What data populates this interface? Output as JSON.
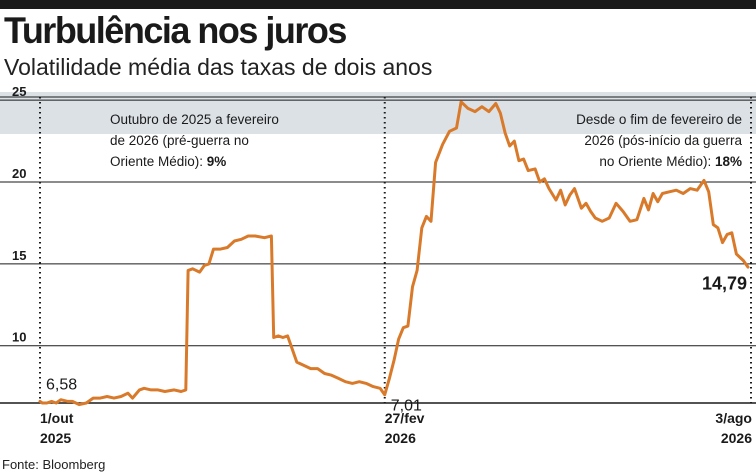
{
  "header": {
    "title": "Turbulência nos juros",
    "subtitle": "Volatilidade média das taxas de dois anos"
  },
  "source": "Fonte: Bloomberg",
  "colors": {
    "line": "#d97a2b",
    "shade": "#dce1e6",
    "grid": "#1a1a1a",
    "text": "#1a1a1a"
  },
  "annotations": {
    "left": {
      "lines": [
        "Outubro de 2025 a fevereiro",
        "de 2026 (pré-guerra no"
      ],
      "last_prefix": "Oriente Médio): ",
      "last_value": "9%"
    },
    "right": {
      "lines": [
        "Desde o fim de fevereiro de",
        "2026 (pós-início da guerra"
      ],
      "last_prefix": "no Oriente Médio): ",
      "last_value": "18%"
    }
  },
  "chart_data": {
    "type": "line",
    "title": "Turbulência nos juros",
    "subtitle": "Volatilidade média das taxas de dois anos",
    "xlabel": "",
    "ylabel": "",
    "ylim": [
      6.5,
      25.5
    ],
    "yticks": [
      10,
      15,
      20,
      25
    ],
    "grid": "horizontal",
    "x_ticks": [
      {
        "label": "1/out",
        "sub": "2025",
        "date": "2025-10-01"
      },
      {
        "label": "27/fev",
        "sub": "2026",
        "date": "2026-02-27"
      },
      {
        "label": "3/ago",
        "sub": "2026",
        "date": "2026-08-03"
      }
    ],
    "data_labels": [
      {
        "text": "6,58",
        "date": "2025-10-01",
        "y": 6.58
      },
      {
        "text": "7,01",
        "date": "2026-02-27",
        "y": 7.01
      },
      {
        "text": "14,79",
        "date": "2026-08-03",
        "y": 14.79
      }
    ],
    "series": [
      {
        "values": [
          [
            "2025-10-01",
            6.6
          ],
          [
            "2025-10-02",
            6.5
          ],
          [
            "2025-10-04",
            6.5
          ],
          [
            "2025-10-06",
            6.6
          ],
          [
            "2025-10-08",
            6.5
          ],
          [
            "2025-10-10",
            6.7
          ],
          [
            "2025-10-13",
            6.6
          ],
          [
            "2025-10-15",
            6.6
          ],
          [
            "2025-10-18",
            6.4
          ],
          [
            "2025-10-21",
            6.5
          ],
          [
            "2025-10-24",
            6.8
          ],
          [
            "2025-10-27",
            6.8
          ],
          [
            "2025-10-30",
            6.9
          ],
          [
            "2025-11-02",
            6.8
          ],
          [
            "2025-11-05",
            6.9
          ],
          [
            "2025-11-08",
            7.1
          ],
          [
            "2025-11-10",
            6.8
          ],
          [
            "2025-11-13",
            7.3
          ],
          [
            "2025-11-15",
            7.4
          ],
          [
            "2025-11-18",
            7.3
          ],
          [
            "2025-11-21",
            7.3
          ],
          [
            "2025-11-24",
            7.2
          ],
          [
            "2025-11-28",
            7.3
          ],
          [
            "2025-12-01",
            7.2
          ],
          [
            "2025-12-03",
            7.3
          ],
          [
            "2025-12-04",
            14.6
          ],
          [
            "2025-12-06",
            14.7
          ],
          [
            "2025-12-09",
            14.5
          ],
          [
            "2025-12-11",
            14.9
          ],
          [
            "2025-12-13",
            15.0
          ],
          [
            "2025-12-15",
            15.9
          ],
          [
            "2025-12-18",
            15.9
          ],
          [
            "2025-12-21",
            16.0
          ],
          [
            "2025-12-24",
            16.4
          ],
          [
            "2025-12-27",
            16.5
          ],
          [
            "2025-12-30",
            16.7
          ],
          [
            "2026-01-02",
            16.7
          ],
          [
            "2026-01-06",
            16.6
          ],
          [
            "2026-01-09",
            16.7
          ],
          [
            "2026-01-10",
            10.5
          ],
          [
            "2026-01-12",
            10.6
          ],
          [
            "2026-01-14",
            10.5
          ],
          [
            "2026-01-16",
            10.6
          ],
          [
            "2026-01-18",
            9.8
          ],
          [
            "2026-01-20",
            9.0
          ],
          [
            "2026-01-23",
            8.8
          ],
          [
            "2026-01-26",
            8.6
          ],
          [
            "2026-01-29",
            8.6
          ],
          [
            "2026-02-01",
            8.3
          ],
          [
            "2026-02-04",
            8.2
          ],
          [
            "2026-02-07",
            8.0
          ],
          [
            "2026-02-10",
            7.8
          ],
          [
            "2026-02-13",
            7.7
          ],
          [
            "2026-02-16",
            7.8
          ],
          [
            "2026-02-19",
            7.7
          ],
          [
            "2026-02-22",
            7.5
          ],
          [
            "2026-02-25",
            7.4
          ],
          [
            "2026-02-27",
            7.0
          ],
          [
            "2026-03-01",
            8.0
          ],
          [
            "2026-03-03",
            9.1
          ],
          [
            "2026-03-05",
            10.4
          ],
          [
            "2026-03-07",
            11.1
          ],
          [
            "2026-03-09",
            11.2
          ],
          [
            "2026-03-11",
            13.6
          ],
          [
            "2026-03-13",
            14.6
          ],
          [
            "2026-03-15",
            17.2
          ],
          [
            "2026-03-17",
            17.9
          ],
          [
            "2026-03-19",
            17.6
          ],
          [
            "2026-03-21",
            21.2
          ],
          [
            "2026-03-24",
            22.3
          ],
          [
            "2026-03-27",
            23.1
          ],
          [
            "2026-03-30",
            23.3
          ],
          [
            "2026-04-01",
            24.9
          ],
          [
            "2026-04-04",
            24.5
          ],
          [
            "2026-04-07",
            24.3
          ],
          [
            "2026-04-10",
            24.6
          ],
          [
            "2026-04-13",
            24.3
          ],
          [
            "2026-04-16",
            24.8
          ],
          [
            "2026-04-18",
            24.2
          ],
          [
            "2026-04-20",
            23.0
          ],
          [
            "2026-04-22",
            22.2
          ],
          [
            "2026-04-24",
            22.5
          ],
          [
            "2026-04-26",
            21.3
          ],
          [
            "2026-04-28",
            21.4
          ],
          [
            "2026-04-30",
            20.7
          ],
          [
            "2026-05-03",
            20.8
          ],
          [
            "2026-05-05",
            20.0
          ],
          [
            "2026-05-07",
            20.2
          ],
          [
            "2026-05-09",
            19.6
          ],
          [
            "2026-05-12",
            18.9
          ],
          [
            "2026-05-14",
            19.5
          ],
          [
            "2026-05-16",
            18.6
          ],
          [
            "2026-05-18",
            19.2
          ],
          [
            "2026-05-20",
            19.6
          ],
          [
            "2026-05-23",
            18.4
          ],
          [
            "2026-05-25",
            18.7
          ],
          [
            "2026-05-27",
            18.2
          ],
          [
            "2026-05-29",
            17.8
          ],
          [
            "2026-06-01",
            17.6
          ],
          [
            "2026-06-04",
            17.8
          ],
          [
            "2026-06-07",
            18.7
          ],
          [
            "2026-06-10",
            18.2
          ],
          [
            "2026-06-13",
            17.6
          ],
          [
            "2026-06-16",
            17.7
          ],
          [
            "2026-06-19",
            19.0
          ],
          [
            "2026-06-21",
            18.3
          ],
          [
            "2026-06-23",
            19.3
          ],
          [
            "2026-06-25",
            18.8
          ],
          [
            "2026-06-27",
            19.3
          ],
          [
            "2026-06-30",
            19.4
          ],
          [
            "2026-07-03",
            19.5
          ],
          [
            "2026-07-06",
            19.3
          ],
          [
            "2026-07-09",
            19.6
          ],
          [
            "2026-07-12",
            19.5
          ],
          [
            "2026-07-15",
            20.1
          ],
          [
            "2026-07-17",
            19.4
          ],
          [
            "2026-07-19",
            17.4
          ],
          [
            "2026-07-21",
            17.2
          ],
          [
            "2026-07-23",
            16.3
          ],
          [
            "2026-07-25",
            16.8
          ],
          [
            "2026-07-27",
            16.9
          ],
          [
            "2026-07-29",
            15.6
          ],
          [
            "2026-08-01",
            15.2
          ],
          [
            "2026-08-03",
            14.8
          ]
        ]
      }
    ]
  }
}
